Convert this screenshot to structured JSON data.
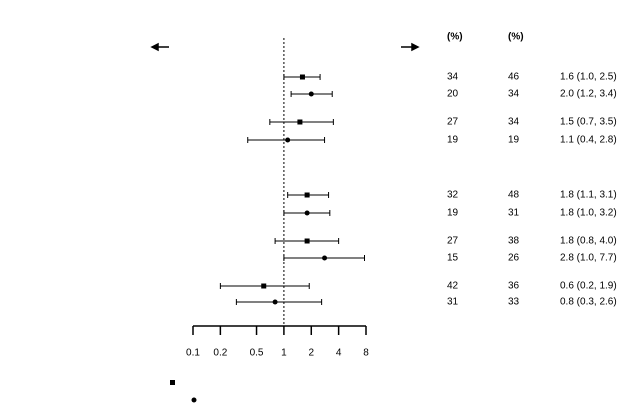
{
  "chart_data": {
    "type": "forest",
    "xlim": [
      0.1,
      8
    ],
    "xticks": [
      0.1,
      0.2,
      0.5,
      1,
      2,
      4,
      8
    ],
    "log_x": true,
    "reference_line": 1,
    "values": [
      1.6,
      2.0,
      1.5,
      1.1,
      1.8,
      1.8,
      1.8,
      2.8,
      0.6,
      0.8
    ],
    "lower": [
      1.0,
      1.2,
      0.7,
      0.4,
      1.1,
      1.0,
      0.8,
      1.0,
      0.2,
      0.3
    ],
    "upper": [
      2.5,
      3.4,
      3.5,
      2.8,
      3.1,
      3.2,
      4.0,
      7.7,
      1.9,
      2.6
    ],
    "value_labels": [
      "1.6 (1.0, 2.5)",
      "2.0 (1.2, 3.4)",
      "1.5 (0.7, 3.5)",
      "1.1 (0.4, 2.8)",
      "1.8 (1.1, 3.1)",
      "1.8 (1.0, 3.2)",
      "1.8 (0.8, 4.0)",
      "2.8 (1.0, 7.7)",
      "0.6 (0.2, 1.9)",
      "0.8 (0.3, 2.6)"
    ],
    "markers": [
      "square",
      "circle",
      "square",
      "circle",
      "square",
      "circle",
      "square",
      "circle",
      "square",
      "circle"
    ],
    "columns": [
      {
        "header": "(%)",
        "values": [
          34,
          20,
          27,
          19,
          32,
          19,
          27,
          15,
          42,
          31
        ]
      },
      {
        "header": "(%)",
        "values": [
          46,
          34,
          34,
          19,
          48,
          31,
          38,
          26,
          36,
          33
        ]
      }
    ]
  }
}
